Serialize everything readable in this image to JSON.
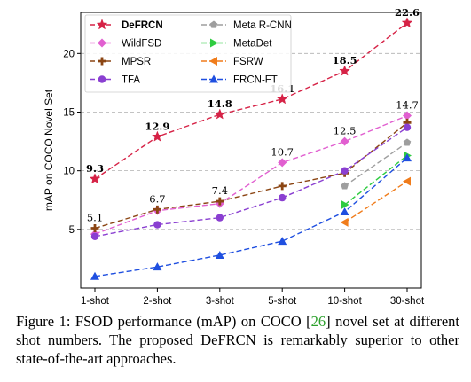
{
  "chart_data": {
    "type": "line",
    "categories": [
      "1-shot",
      "2-shot",
      "3-shot",
      "5-shot",
      "10-shot",
      "30-shot"
    ],
    "ylabel": "mAP on COCO Novel Set",
    "xlabel": "",
    "ylim": [
      0,
      23.5
    ],
    "yticks": [
      5,
      10,
      15,
      20
    ],
    "grid": "horizontal-dashed",
    "legend_position": "top-left",
    "series": [
      {
        "name": "DeFRCN",
        "values": [
          9.3,
          12.9,
          14.8,
          16.1,
          18.5,
          22.6
        ],
        "color": "#d62246",
        "marker": "star",
        "labels": [
          "9.3",
          "12.9",
          "14.8",
          "16.1",
          "18.5",
          "22.6"
        ],
        "label_bold": true
      },
      {
        "name": "WildFSD",
        "values": [
          4.6,
          6.6,
          7.2,
          10.7,
          12.5,
          14.7
        ],
        "color": "#e15fd0",
        "marker": "diamond",
        "labels": [
          null,
          null,
          null,
          "10.7",
          "12.5",
          "14.7"
        ]
      },
      {
        "name": "MPSR",
        "values": [
          5.1,
          6.7,
          7.4,
          8.7,
          9.8,
          14.1
        ],
        "color": "#8b4513",
        "marker": "plus",
        "labels": [
          "5.1",
          "6.7",
          "7.4",
          null,
          null,
          null
        ]
      },
      {
        "name": "TFA",
        "values": [
          4.4,
          5.4,
          6.0,
          7.7,
          10.0,
          13.7
        ],
        "color": "#8a3fd1",
        "marker": "circle",
        "labels": [
          null,
          null,
          null,
          null,
          null,
          null
        ]
      },
      {
        "name": "Meta R-CNN",
        "values": [
          null,
          null,
          null,
          null,
          8.7,
          12.4
        ],
        "color": "#9e9e9e",
        "marker": "pentagon",
        "labels": [
          null,
          null,
          null,
          null,
          null,
          null
        ]
      },
      {
        "name": "MetaDet",
        "values": [
          null,
          null,
          null,
          null,
          7.1,
          11.3
        ],
        "color": "#2ecc40",
        "marker": "triangle-right",
        "labels": [
          null,
          null,
          null,
          null,
          null,
          null
        ]
      },
      {
        "name": "FSRW",
        "values": [
          null,
          null,
          null,
          null,
          5.6,
          9.1
        ],
        "color": "#f07c1b",
        "marker": "triangle-left",
        "labels": [
          null,
          null,
          null,
          null,
          null,
          null
        ]
      },
      {
        "name": "FRCN-FT",
        "values": [
          1.0,
          1.8,
          2.8,
          4.0,
          6.5,
          11.1
        ],
        "color": "#1f4fe0",
        "marker": "triangle-up",
        "labels": [
          null,
          null,
          null,
          null,
          null,
          null
        ]
      }
    ]
  },
  "caption": {
    "prefix": "Figure 1: FSOD performance (mAP) on COCO [",
    "citation": "26",
    "suffix": "] novel set at different shot numbers. The proposed DeFRCN is remarkably superior to other state-of-the-art approaches."
  }
}
